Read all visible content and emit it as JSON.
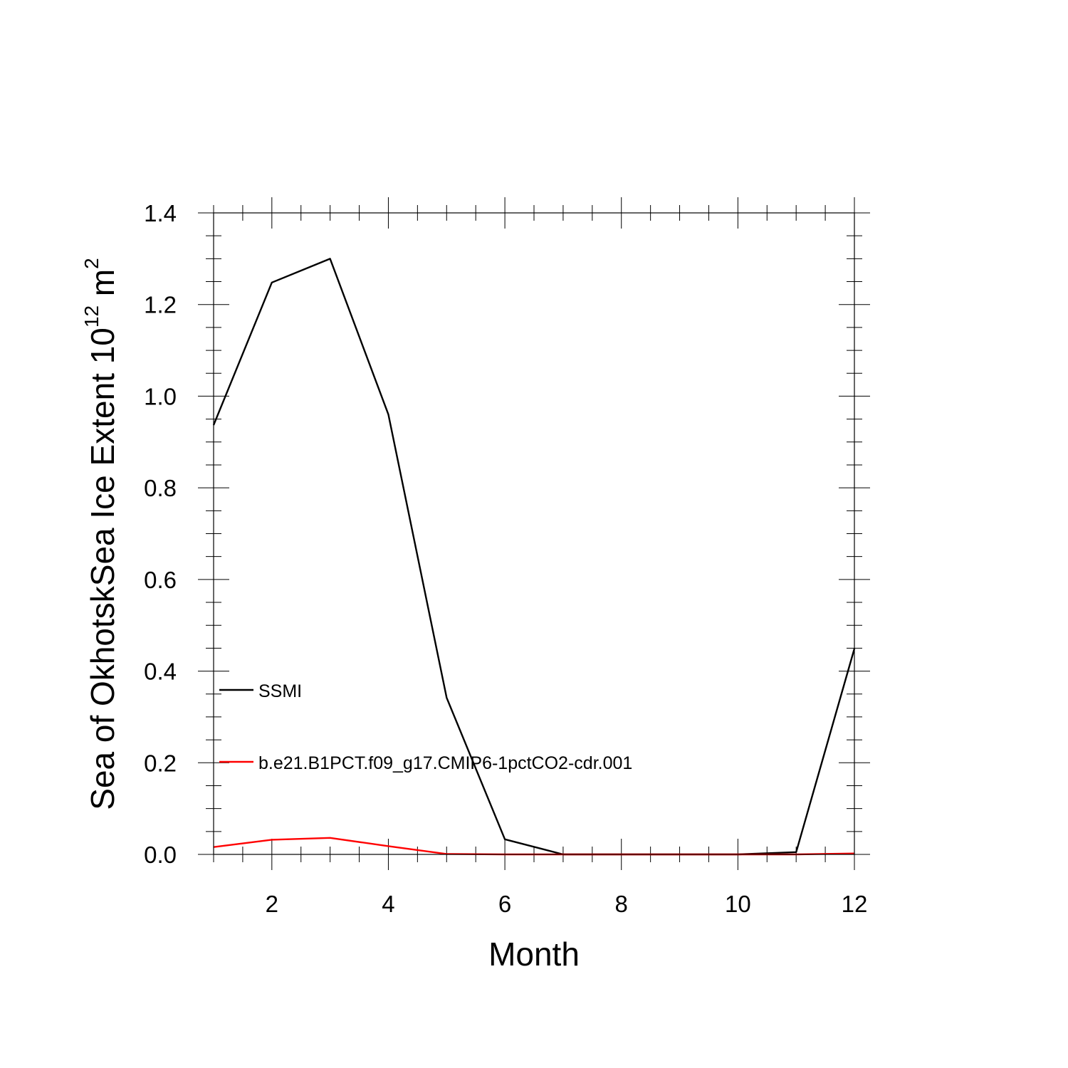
{
  "chart_data": {
    "type": "line",
    "title": "",
    "xlabel": "Month",
    "ylabel": {
      "text": "Sea of OkhotskSea Ice Extent 10",
      "superscript": "12",
      "unit": " m",
      "unit_superscript": "2"
    },
    "xlim": [
      1,
      12
    ],
    "ylim": [
      0,
      1.4
    ],
    "xticks": [
      2,
      4,
      6,
      8,
      10,
      12
    ],
    "xtick_labels": [
      "2",
      "4",
      "6",
      "8",
      "10",
      "12"
    ],
    "yticks": [
      0,
      0.2,
      0.4,
      0.6,
      0.8,
      1.0,
      1.2,
      1.4
    ],
    "ytick_labels": [
      "0.0",
      "0.2",
      "0.4",
      "0.6",
      "0.8",
      "1.0",
      "1.2",
      "1.4"
    ],
    "grid": false,
    "legend_placement": "lower-left",
    "x": [
      1,
      2,
      3,
      4,
      5,
      6,
      7,
      8,
      9,
      10,
      11,
      12
    ],
    "series": [
      {
        "name": "SSMI",
        "color": "#000000",
        "values": [
          0.937,
          1.248,
          1.3,
          0.96,
          0.342,
          0.033,
          0.0,
          0.0,
          0.0,
          0.0,
          0.005,
          0.449
        ]
      },
      {
        "name": "b.e21.B1PCT.f09_g17.CMIP6-1pctCO2-cdr.001",
        "color": "#ff0000",
        "values": [
          0.016,
          0.032,
          0.036,
          0.018,
          0.001,
          0.0,
          0.0,
          0.0,
          0.0,
          0.0,
          0.0,
          0.002
        ]
      }
    ]
  }
}
